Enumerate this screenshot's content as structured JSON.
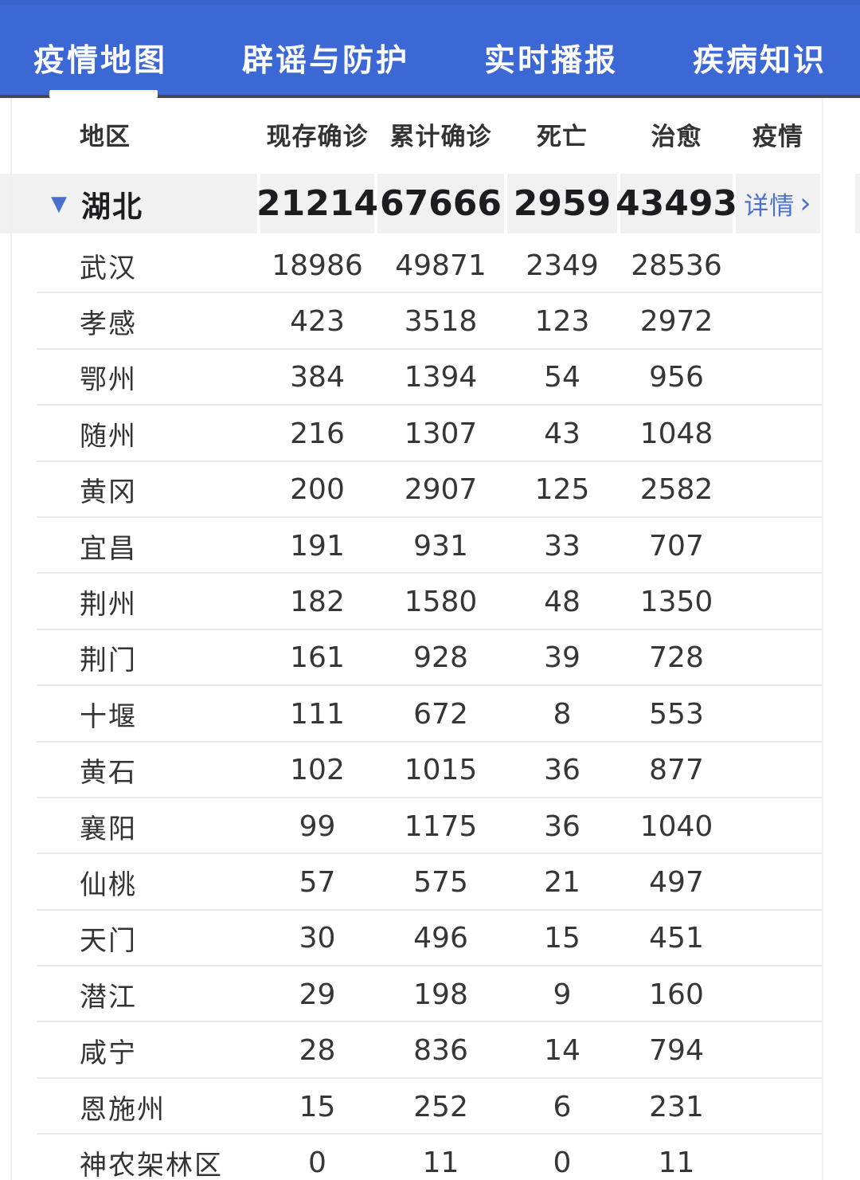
{
  "nav": {
    "tabs": [
      {
        "label": "疫情地图",
        "active": true
      },
      {
        "label": "辟谣与防护",
        "active": false
      },
      {
        "label": "实时播报",
        "active": false
      },
      {
        "label": "疾病知识",
        "active": false
      }
    ]
  },
  "table": {
    "columns": [
      "地区",
      "现存确诊",
      "累计确诊",
      "死亡",
      "治愈",
      "疫情"
    ],
    "province": {
      "collapse_icon": "▼",
      "name": "湖北",
      "current": "21214",
      "total": "67666",
      "deaths": "2959",
      "cured": "43493",
      "detail_label": "详情",
      "detail_chevron": "›"
    },
    "rows": [
      {
        "region": "武汉",
        "current": "18986",
        "total": "49871",
        "deaths": "2349",
        "cured": "28536"
      },
      {
        "region": "孝感",
        "current": "423",
        "total": "3518",
        "deaths": "123",
        "cured": "2972"
      },
      {
        "region": "鄂州",
        "current": "384",
        "total": "1394",
        "deaths": "54",
        "cured": "956"
      },
      {
        "region": "随州",
        "current": "216",
        "total": "1307",
        "deaths": "43",
        "cured": "1048"
      },
      {
        "region": "黄冈",
        "current": "200",
        "total": "2907",
        "deaths": "125",
        "cured": "2582"
      },
      {
        "region": "宜昌",
        "current": "191",
        "total": "931",
        "deaths": "33",
        "cured": "707"
      },
      {
        "region": "荆州",
        "current": "182",
        "total": "1580",
        "deaths": "48",
        "cured": "1350"
      },
      {
        "region": "荆门",
        "current": "161",
        "total": "928",
        "deaths": "39",
        "cured": "728"
      },
      {
        "region": "十堰",
        "current": "111",
        "total": "672",
        "deaths": "8",
        "cured": "553"
      },
      {
        "region": "黄石",
        "current": "102",
        "total": "1015",
        "deaths": "36",
        "cured": "877"
      },
      {
        "region": "襄阳",
        "current": "99",
        "total": "1175",
        "deaths": "36",
        "cured": "1040"
      },
      {
        "region": "仙桃",
        "current": "57",
        "total": "575",
        "deaths": "21",
        "cured": "497"
      },
      {
        "region": "天门",
        "current": "30",
        "total": "496",
        "deaths": "15",
        "cured": "451"
      },
      {
        "region": "潜江",
        "current": "29",
        "total": "198",
        "deaths": "9",
        "cured": "160"
      },
      {
        "region": "咸宁",
        "current": "28",
        "total": "836",
        "deaths": "14",
        "cured": "794"
      },
      {
        "region": "恩施州",
        "current": "15",
        "total": "252",
        "deaths": "6",
        "cured": "231"
      },
      {
        "region": "神农架林区",
        "current": "0",
        "total": "11",
        "deaths": "0",
        "cured": "11"
      }
    ]
  },
  "colors": {
    "nav_bg": "#3C68D6",
    "nav_bg_top": "#3560C4",
    "nav_border_bottom": "#45494f",
    "active_tab_underline": "#ffffff",
    "link_blue": "#4A70CE",
    "header_text": "#333333",
    "row_text": "#333333",
    "number_text": "#363636",
    "province_row_bg": "#f1f1f2",
    "province_text": "#1d1d1f",
    "separator": "#eaeaea",
    "page_bg": "#ffffff"
  }
}
